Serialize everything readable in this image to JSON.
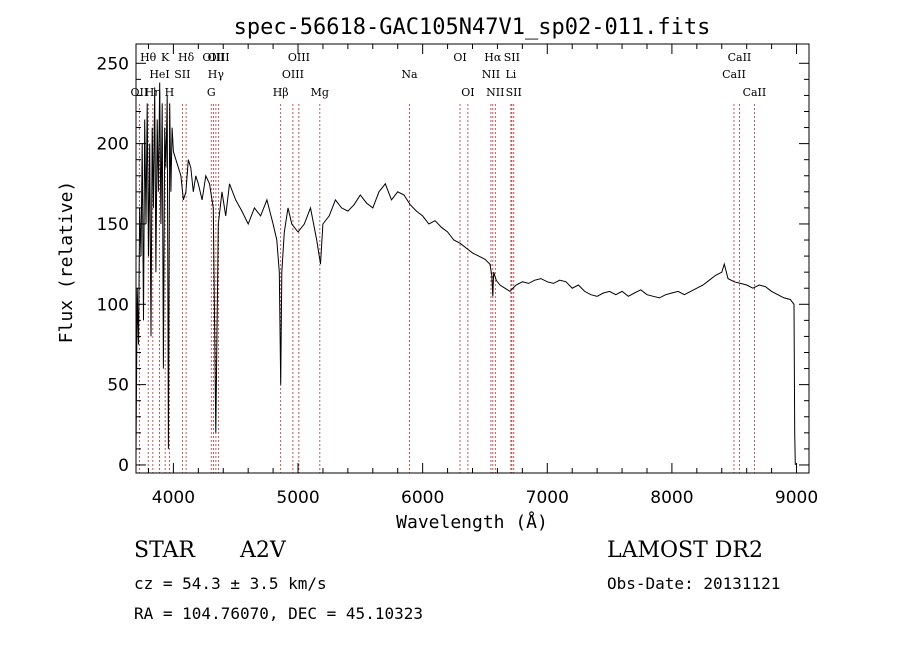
{
  "chart_data": {
    "type": "line",
    "title": "spec-56618-GAC105N47V1_sp02-011.fits",
    "xlabel": "Wavelength (Å)",
    "ylabel": "Flux (relative)",
    "xlim": [
      3700,
      9100
    ],
    "ylim": [
      -5,
      262
    ],
    "x_ticks": [
      4000,
      5000,
      6000,
      7000,
      8000,
      9000
    ],
    "y_ticks": [
      0,
      50,
      100,
      150,
      200,
      250
    ],
    "grid": false,
    "series": [
      {
        "x": [
          3700,
          3710,
          3720,
          3730,
          3740,
          3750,
          3760,
          3770,
          3780,
          3790,
          3800,
          3810,
          3820,
          3830,
          3840,
          3850,
          3860,
          3870,
          3880,
          3890,
          3900,
          3910,
          3920,
          3930,
          3940,
          3950,
          3960,
          3970,
          3980,
          3990,
          4000,
          4020,
          4040,
          4060,
          4080,
          4100,
          4120,
          4140,
          4160,
          4180,
          4200,
          4230,
          4260,
          4290,
          4320,
          4340,
          4360,
          4390,
          4420,
          4450,
          4500,
          4550,
          4600,
          4650,
          4700,
          4750,
          4800,
          4830,
          4850,
          4861,
          4870,
          4890,
          4920,
          4950,
          5000,
          5050,
          5100,
          5150,
          5180,
          5200,
          5250,
          5300,
          5350,
          5400,
          5450,
          5500,
          5550,
          5600,
          5650,
          5700,
          5750,
          5800,
          5850,
          5900,
          5950,
          6000,
          6050,
          6100,
          6150,
          6200,
          6250,
          6300,
          6350,
          6400,
          6450,
          6500,
          6540,
          6555,
          6563,
          6570,
          6590,
          6620,
          6660,
          6700,
          6750,
          6800,
          6850,
          6900,
          6950,
          7000,
          7050,
          7100,
          7150,
          7200,
          7250,
          7300,
          7350,
          7400,
          7450,
          7500,
          7550,
          7600,
          7650,
          7700,
          7750,
          7800,
          7850,
          7900,
          7950,
          8000,
          8050,
          8100,
          8150,
          8200,
          8250,
          8300,
          8350,
          8400,
          8420,
          8450,
          8500,
          8550,
          8600,
          8650,
          8700,
          8750,
          8800,
          8850,
          8900,
          8950,
          8980,
          8985,
          8990
        ],
        "y": [
          5,
          110,
          75,
          160,
          130,
          200,
          90,
          215,
          150,
          225,
          130,
          200,
          80,
          210,
          160,
          235,
          120,
          215,
          170,
          238,
          150,
          225,
          60,
          210,
          185,
          230,
          10,
          225,
          170,
          210,
          195,
          190,
          185,
          180,
          165,
          170,
          190,
          185,
          170,
          180,
          175,
          165,
          180,
          175,
          160,
          20,
          150,
          170,
          155,
          175,
          165,
          158,
          150,
          160,
          155,
          165,
          150,
          140,
          120,
          50,
          120,
          145,
          160,
          150,
          145,
          150,
          160,
          140,
          125,
          150,
          155,
          165,
          160,
          158,
          162,
          168,
          163,
          160,
          170,
          175,
          165,
          170,
          168,
          162,
          158,
          155,
          150,
          152,
          148,
          145,
          140,
          138,
          135,
          132,
          130,
          128,
          125,
          118,
          105,
          120,
          115,
          112,
          110,
          108,
          112,
          114,
          113,
          115,
          116,
          114,
          113,
          115,
          114,
          110,
          112,
          108,
          106,
          105,
          107,
          108,
          106,
          108,
          105,
          107,
          109,
          106,
          105,
          104,
          106,
          107,
          108,
          106,
          108,
          110,
          112,
          115,
          118,
          120,
          125,
          116,
          114,
          113,
          112,
          110,
          112,
          111,
          108,
          106,
          104,
          103,
          100,
          20,
          0
        ]
      }
    ],
    "lines": [
      {
        "label": "OII",
        "x": 3727,
        "row": 3
      },
      {
        "label": "Hθ",
        "x": 3798,
        "row": 1
      },
      {
        "label": "Hη",
        "x": 3835,
        "row": 3
      },
      {
        "label": "HeI",
        "x": 3889,
        "row": 2
      },
      {
        "label": "K",
        "x": 3934,
        "row": 1
      },
      {
        "label": "H",
        "x": 3968,
        "row": 3
      },
      {
        "label": "SII",
        "x": 4072,
        "row": 2
      },
      {
        "label": "Hδ",
        "x": 4102,
        "row": 1
      },
      {
        "label": "G",
        "x": 4304,
        "row": 3
      },
      {
        "label": "OIII",
        "x": 4321,
        "row": 1
      },
      {
        "label": "Hγ",
        "x": 4341,
        "row": 2
      },
      {
        "label": "OIII",
        "x": 4363,
        "row": 1
      },
      {
        "label": "Hβ",
        "x": 4861,
        "row": 3
      },
      {
        "label": "OIII",
        "x": 4959,
        "row": 2
      },
      {
        "label": "OIII",
        "x": 5007,
        "row": 1
      },
      {
        "label": "Mg",
        "x": 5175,
        "row": 3
      },
      {
        "label": "Na",
        "x": 5894,
        "row": 2
      },
      {
        "label": "OI",
        "x": 6300,
        "row": 1
      },
      {
        "label": "OI",
        "x": 6363,
        "row": 3
      },
      {
        "label": "NII",
        "x": 6548,
        "row": 2
      },
      {
        "label": "Hα",
        "x": 6563,
        "row": 1
      },
      {
        "label": "NII",
        "x": 6583,
        "row": 3
      },
      {
        "label": "Li",
        "x": 6708,
        "row": 2
      },
      {
        "label": "SII",
        "x": 6716,
        "row": 1
      },
      {
        "label": "SII",
        "x": 6731,
        "row": 3
      },
      {
        "label": "CaII",
        "x": 8498,
        "row": 2
      },
      {
        "label": "CaII",
        "x": 8542,
        "row": 1
      },
      {
        "label": "CaII",
        "x": 8662,
        "row": 3
      }
    ]
  },
  "info": {
    "class_label": "STAR",
    "subclass": "A2V",
    "survey": "LAMOST DR2",
    "redshift": "cz = 54.3 ± 3.5 km/s",
    "obs_date": "Obs-Date: 20131121",
    "coords": "RA = 104.76070, DEC =  45.10323"
  },
  "colors": {
    "spectrum": "#000000",
    "line_marker": "#b03030",
    "axes": "#000000"
  }
}
